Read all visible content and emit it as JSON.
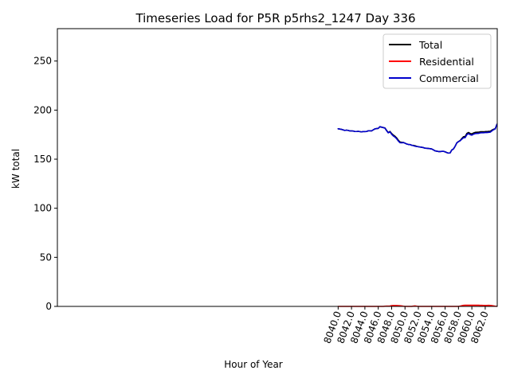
{
  "chart_data": {
    "type": "line",
    "title": "Timeseries Load for P5R p5rhs2_1247  Day 336",
    "xlabel": "Hour of Year",
    "ylabel": "kW total",
    "xlim": [
      7998.0,
      8063.8
    ],
    "ylim": [
      0,
      283
    ],
    "x_ticks": [
      8040.0,
      8042.0,
      8044.0,
      8046.0,
      8048.0,
      8050.0,
      8052.0,
      8054.0,
      8056.0,
      8058.0,
      8060.0,
      8062.0
    ],
    "x_tick_labels": [
      "8040.0",
      "8042.0",
      "8044.0",
      "8046.0",
      "8048.0",
      "8050.0",
      "8052.0",
      "8054.0",
      "8056.0",
      "8058.0",
      "8060.0",
      "8062.0"
    ],
    "y_ticks": [
      0,
      50,
      100,
      150,
      200,
      250
    ],
    "y_tick_labels": [
      "0",
      "50",
      "100",
      "150",
      "200",
      "250"
    ],
    "grid": false,
    "legend_position": "top-right",
    "x": [
      8040.0,
      8040.25,
      8040.5,
      8040.75,
      8041.0,
      8041.25,
      8041.5,
      8041.75,
      8042.0,
      8042.25,
      8042.5,
      8042.75,
      8043.0,
      8043.25,
      8043.5,
      8043.75,
      8044.0,
      8044.25,
      8044.5,
      8044.75,
      8045.0,
      8045.25,
      8045.5,
      8045.75,
      8046.0,
      8046.25,
      8046.5,
      8046.75,
      8047.0,
      8047.25,
      8047.5,
      8047.75,
      8048.0,
      8048.25,
      8048.5,
      8048.75,
      8049.0,
      8049.25,
      8049.5,
      8049.75,
      8050.0,
      8050.25,
      8050.5,
      8050.75,
      8051.0,
      8051.25,
      8051.5,
      8051.75,
      8052.0,
      8052.25,
      8052.5,
      8052.75,
      8053.0,
      8053.25,
      8053.5,
      8053.75,
      8054.0,
      8054.25,
      8054.5,
      8054.75,
      8055.0,
      8055.25,
      8055.5,
      8055.75,
      8056.0,
      8056.25,
      8056.5,
      8056.75,
      8057.0,
      8057.25,
      8057.5,
      8057.75,
      8058.0,
      8058.25,
      8058.5,
      8058.75,
      8059.0,
      8059.25,
      8059.5,
      8059.75,
      8060.0,
      8060.25,
      8060.5,
      8060.75,
      8061.0,
      8061.25,
      8061.5,
      8061.75,
      8062.0,
      8062.25,
      8062.5,
      8062.75,
      8063.0,
      8063.25,
      8063.5,
      8063.75
    ],
    "series": [
      {
        "name": "Total",
        "color": "#000000",
        "values": [
          181.0,
          180.7,
          180.4,
          179.8,
          179.3,
          179.6,
          179.3,
          178.8,
          178.8,
          178.7,
          178.2,
          178.2,
          178.4,
          178.1,
          177.8,
          178.2,
          178.1,
          178.2,
          178.9,
          178.9,
          178.8,
          179.9,
          180.9,
          181.2,
          181.4,
          183.1,
          182.6,
          182.2,
          181.8,
          179.3,
          177.1,
          178.3,
          176.2,
          174.6,
          173.4,
          171.7,
          169.3,
          167.5,
          167.2,
          167.1,
          166.3,
          165.5,
          165.0,
          164.9,
          164.2,
          164.1,
          163.7,
          163.1,
          162.7,
          162.4,
          162.1,
          161.8,
          161.2,
          161.1,
          160.9,
          160.7,
          160.4,
          159.5,
          158.5,
          158.2,
          157.8,
          157.8,
          158.0,
          158.0,
          157.5,
          156.7,
          156.2,
          156.4,
          159.4,
          160.4,
          163.2,
          166.6,
          167.9,
          169.0,
          171.1,
          172.9,
          173.1,
          176.2,
          177.2,
          176.2,
          175.7,
          176.7,
          177.3,
          177.4,
          177.5,
          177.9,
          178.0,
          177.9,
          178.1,
          178.1,
          178.4,
          178.5,
          179.6,
          180.5,
          181.0,
          185.6
        ],
        "values_note": ""
      },
      {
        "name": "Residential",
        "color": "#ff0000",
        "values": [
          0.0,
          0.0,
          0.0,
          0.0,
          0.0,
          0.0,
          0.0,
          0.0,
          0.0,
          0.0,
          0.0,
          0.0,
          0.0,
          0.0,
          0.0,
          0.0,
          0.0,
          0.0,
          0.0,
          0.0,
          0.0,
          0.0,
          0.0,
          0.0,
          0.0,
          0.0,
          0.0,
          0.0,
          0.2,
          0.3,
          0.3,
          0.4,
          0.8,
          0.9,
          0.9,
          0.9,
          0.8,
          0.7,
          0.5,
          0.2,
          0.0,
          0.0,
          0.0,
          0.0,
          0.0,
          0.3,
          0.5,
          0.2,
          0.0,
          0.0,
          0.0,
          0.0,
          0.0,
          0.0,
          0.0,
          0.0,
          0.0,
          0.0,
          0.0,
          0.0,
          0.0,
          0.0,
          0.0,
          0.0,
          0.0,
          0.0,
          0.0,
          0.0,
          0.0,
          0.0,
          0.0,
          0.0,
          0.0,
          0.3,
          0.7,
          1.1,
          1.2,
          1.2,
          1.2,
          1.2,
          1.2,
          1.2,
          1.2,
          1.2,
          1.2,
          1.1,
          1.1,
          1.0,
          1.0,
          1.0,
          1.1,
          1.0,
          0.8,
          0.5,
          0.2,
          0.1
        ]
      },
      {
        "name": "Commercial",
        "color": "#0000cc",
        "values": [
          181.0,
          180.7,
          180.4,
          179.8,
          179.3,
          179.6,
          179.3,
          178.8,
          178.8,
          178.7,
          178.2,
          178.2,
          178.4,
          178.1,
          177.8,
          178.2,
          178.1,
          178.2,
          178.9,
          178.9,
          178.8,
          179.9,
          180.9,
          181.2,
          181.4,
          183.1,
          182.6,
          182.2,
          181.6,
          179.0,
          176.8,
          177.9,
          175.4,
          173.7,
          172.5,
          170.8,
          168.5,
          166.8,
          166.7,
          166.9,
          166.3,
          165.5,
          165.0,
          164.9,
          164.2,
          163.8,
          163.2,
          162.9,
          162.7,
          162.4,
          162.1,
          161.8,
          161.2,
          161.1,
          160.9,
          160.7,
          160.4,
          159.5,
          158.5,
          158.2,
          157.8,
          157.8,
          158.0,
          158.0,
          157.5,
          156.7,
          156.2,
          156.4,
          159.4,
          160.4,
          163.2,
          166.6,
          167.9,
          168.7,
          170.4,
          171.8,
          171.9,
          175.0,
          176.0,
          175.0,
          174.5,
          175.5,
          176.1,
          176.2,
          176.3,
          176.8,
          176.9,
          176.9,
          177.1,
          177.1,
          177.3,
          177.5,
          178.8,
          180.0,
          180.8,
          185.5
        ]
      }
    ]
  }
}
